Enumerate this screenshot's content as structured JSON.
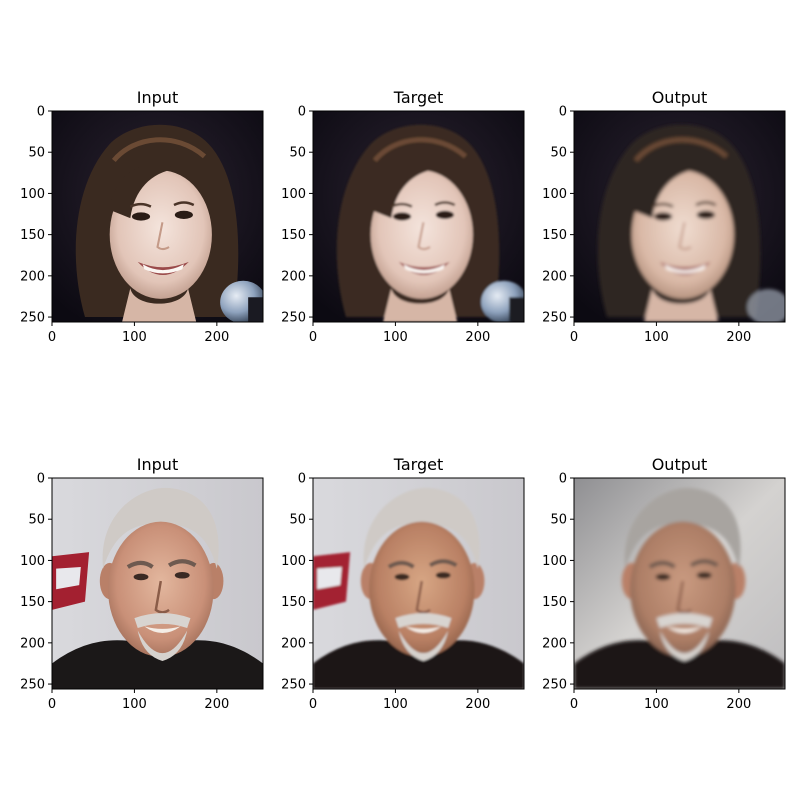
{
  "figure": {
    "rows": [
      {
        "subject": "young woman smiling, dark hair, microphone at lower right",
        "panels": [
          {
            "title": "Input",
            "variant": "input"
          },
          {
            "title": "Target",
            "variant": "target"
          },
          {
            "title": "Output",
            "variant": "output"
          }
        ]
      },
      {
        "subject": "older man smiling, grey hair and goatee, dark shirt",
        "panels": [
          {
            "title": "Input",
            "variant": "input"
          },
          {
            "title": "Target",
            "variant": "target"
          },
          {
            "title": "Output",
            "variant": "output"
          }
        ]
      }
    ],
    "x_ticks": [
      "0",
      "100",
      "200"
    ],
    "y_ticks": [
      "0",
      "50",
      "100",
      "150",
      "200",
      "250"
    ],
    "x_tick_values": [
      0,
      100,
      200
    ],
    "y_tick_values": [
      0,
      50,
      100,
      150,
      200,
      250
    ],
    "axis_range": [
      0,
      256
    ]
  }
}
